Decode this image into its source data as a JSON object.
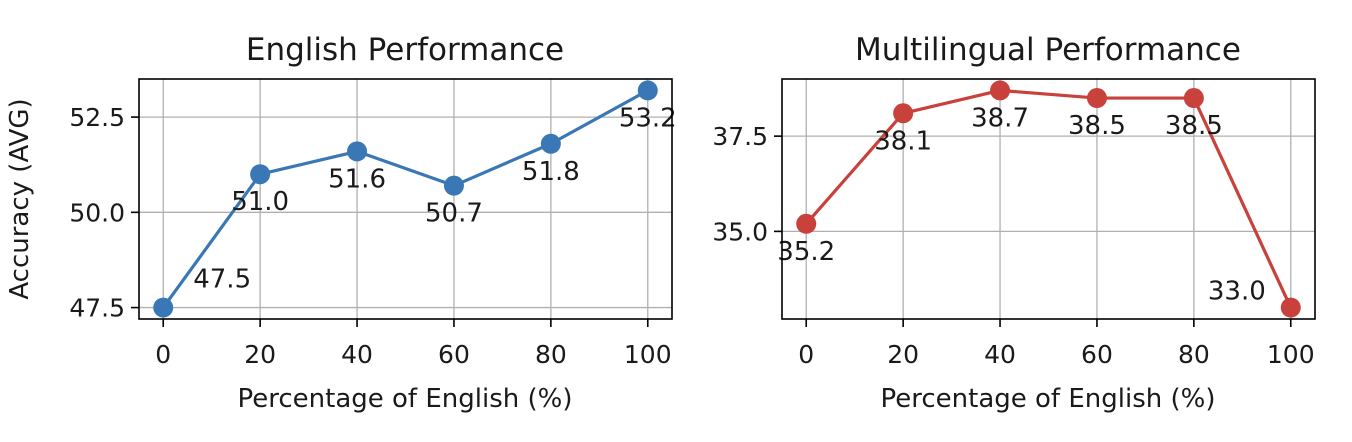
{
  "chart_data": [
    {
      "type": "line",
      "title": "English Performance",
      "xlabel": "Percentage of English (%)",
      "ylabel": "Accuracy (AVG)",
      "x": [
        0,
        20,
        40,
        60,
        80,
        100
      ],
      "values": [
        47.5,
        51.0,
        51.6,
        50.7,
        51.8,
        53.2
      ],
      "data_labels": [
        "47.5",
        "51.0",
        "51.6",
        "50.7",
        "51.8",
        "53.2"
      ],
      "xticks": [
        0,
        20,
        40,
        60,
        80,
        100
      ],
      "yticks": [
        47.5,
        50.0,
        52.5
      ],
      "ytick_labels": [
        "47.5",
        "50.0",
        "52.5"
      ],
      "xlim": [
        -5,
        105
      ],
      "ylim": [
        47.2,
        53.5
      ],
      "grid": true,
      "color": "#3a78b5"
    },
    {
      "type": "line",
      "title": "Multilingual Performance",
      "xlabel": "Percentage of English (%)",
      "ylabel": "",
      "x": [
        0,
        20,
        40,
        60,
        80,
        100
      ],
      "values": [
        35.2,
        38.1,
        38.7,
        38.5,
        38.5,
        33.0
      ],
      "data_labels": [
        "35.2",
        "38.1",
        "38.7",
        "38.5",
        "38.5",
        "33.0"
      ],
      "xticks": [
        0,
        20,
        40,
        60,
        80,
        100
      ],
      "yticks": [
        35.0,
        37.5
      ],
      "ytick_labels": [
        "35.0",
        "37.5"
      ],
      "xlim": [
        -5,
        105
      ],
      "ylim": [
        32.7,
        39.0
      ],
      "grid": true,
      "color": "#c8413b"
    }
  ]
}
